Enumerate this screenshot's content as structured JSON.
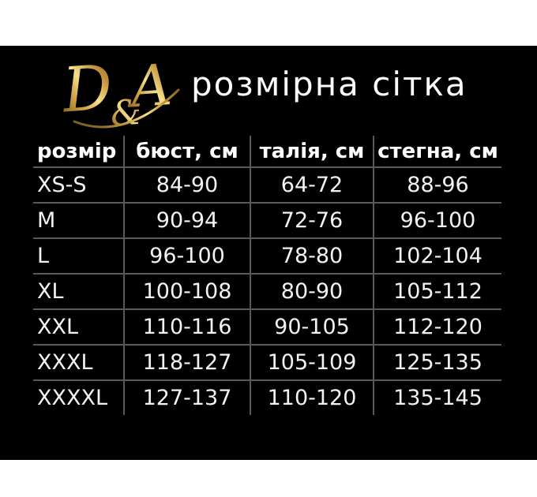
{
  "logo": {
    "d": "D",
    "amp": "&",
    "a": "A"
  },
  "title": "розмірна сітка",
  "colors": {
    "page_background": "#ffffff",
    "panel_background": "#000000",
    "grid_line": "#5a5a5a",
    "header_text": "#ffffff",
    "cell_text": "#f2f2f2",
    "gold_dark": "#6b4e15",
    "gold_mid": "#c99c3e",
    "gold_light": "#f6e089"
  },
  "chart_data": {
    "type": "table",
    "title": "розмірна сітка",
    "columns": [
      "розмір",
      "бюст, см",
      "талія, см",
      "стегна, см"
    ],
    "rows": [
      [
        "XS-S",
        "84-90",
        "64-72",
        "88-96"
      ],
      [
        "M",
        "90-94",
        "72-76",
        "96-100"
      ],
      [
        "L",
        "96-100",
        "78-80",
        "102-104"
      ],
      [
        "XL",
        "100-108",
        "80-90",
        "105-112"
      ],
      [
        "XXL",
        "110-116",
        "90-105",
        "112-120"
      ],
      [
        "XXXL",
        "118-127",
        "105-109",
        "125-135"
      ],
      [
        "XXXXL",
        "127-137",
        "110-120",
        "135-145"
      ]
    ]
  }
}
